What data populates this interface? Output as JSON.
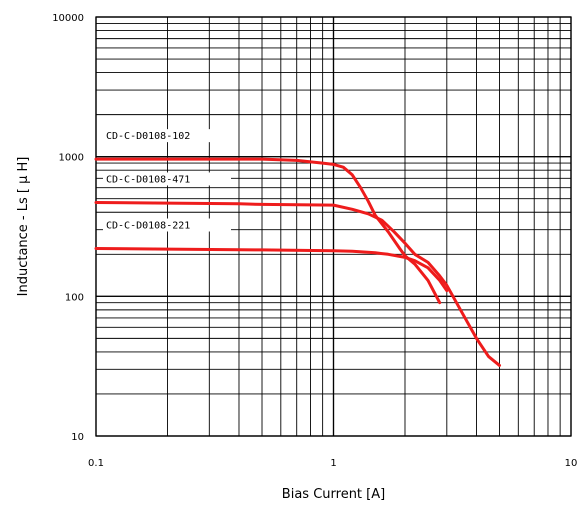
{
  "chart_data": {
    "type": "line",
    "xlabel": "Bias Current [A]",
    "ylabel": "Inductance - Ls [ μ H]",
    "x_scale": "log",
    "y_scale": "log",
    "xlim": [
      0.1,
      10
    ],
    "ylim": [
      10,
      10000
    ],
    "x_ticks": [
      "0.1",
      "1",
      "10"
    ],
    "y_ticks": [
      "10",
      "100",
      "1000",
      "10000"
    ],
    "grid": true,
    "series_color": "#ee1c1c",
    "series": [
      {
        "name": "CD-C-D0108-102",
        "points": [
          [
            0.1,
            960
          ],
          [
            0.2,
            960
          ],
          [
            0.5,
            960
          ],
          [
            0.7,
            940
          ],
          [
            0.9,
            900
          ],
          [
            1.0,
            880
          ],
          [
            1.1,
            840
          ],
          [
            1.2,
            740
          ],
          [
            1.3,
            600
          ],
          [
            1.4,
            480
          ],
          [
            1.5,
            380
          ],
          [
            1.7,
            290
          ],
          [
            1.9,
            220
          ],
          [
            2.0,
            195
          ],
          [
            2.2,
            170
          ],
          [
            2.5,
            130
          ],
          [
            2.8,
            90
          ]
        ]
      },
      {
        "name": "CD-C-D0108-471",
        "points": [
          [
            0.1,
            470
          ],
          [
            0.2,
            465
          ],
          [
            0.4,
            460
          ],
          [
            0.5,
            455
          ],
          [
            1.0,
            450
          ],
          [
            1.2,
            420
          ],
          [
            1.4,
            390
          ],
          [
            1.6,
            350
          ],
          [
            1.8,
            290
          ],
          [
            2.0,
            240
          ],
          [
            2.2,
            200
          ],
          [
            2.5,
            175
          ],
          [
            2.8,
            140
          ],
          [
            3.0,
            120
          ],
          [
            3.5,
            75
          ],
          [
            4.0,
            50
          ],
          [
            4.5,
            37
          ],
          [
            5.0,
            32
          ]
        ]
      },
      {
        "name": "CD-C-D0108-221",
        "points": [
          [
            0.1,
            220
          ],
          [
            0.2,
            218
          ],
          [
            0.5,
            215
          ],
          [
            1.0,
            212
          ],
          [
            1.2,
            210
          ],
          [
            1.5,
            205
          ],
          [
            1.7,
            200
          ],
          [
            2.0,
            190
          ],
          [
            2.2,
            180
          ],
          [
            2.5,
            160
          ],
          [
            2.8,
            130
          ],
          [
            3.0,
            110
          ]
        ]
      }
    ]
  }
}
